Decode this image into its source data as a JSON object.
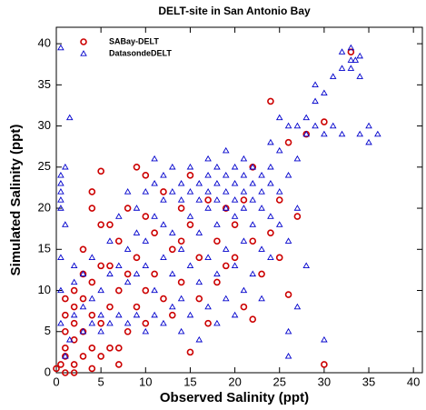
{
  "chart_data": {
    "type": "scatter",
    "title": "DELT-site in San Antonio Bay",
    "xlabel": "Observed Salinity (ppt)",
    "ylabel": "Simulated Salinity (ppt)",
    "xlim": [
      0,
      41
    ],
    "ylim": [
      0,
      42
    ],
    "xticks": [
      0,
      5,
      10,
      15,
      20,
      25,
      30,
      35,
      40
    ],
    "yticks": [
      0,
      5,
      10,
      15,
      20,
      25,
      30,
      35,
      40
    ],
    "legend": "upper left",
    "series": [
      {
        "name": "SABay-DELT",
        "color": "#cc0000",
        "marker": "circle",
        "x": [
          0,
          0.5,
          1,
          1,
          1,
          1,
          1,
          1,
          2,
          2,
          2,
          2,
          2,
          2,
          3,
          3,
          3,
          3,
          3,
          4,
          4,
          4,
          4,
          4,
          4,
          5,
          5,
          5,
          5,
          6,
          6,
          6,
          7,
          7,
          7,
          7,
          8,
          8,
          8,
          9,
          9,
          9,
          10,
          10,
          10,
          10,
          11,
          11,
          12,
          12,
          13,
          13,
          14,
          14,
          15,
          15,
          16,
          16,
          17,
          17,
          18,
          18,
          19,
          19,
          20,
          20,
          21,
          21,
          22,
          22,
          23,
          24,
          24,
          25,
          25,
          26,
          26,
          27,
          28,
          30,
          30,
          33,
          22,
          14,
          6,
          15,
          5
        ],
        "values": [
          0.5,
          1,
          0,
          2,
          3,
          5,
          7,
          9,
          0,
          1,
          4,
          6,
          8,
          10,
          2,
          5,
          9,
          12,
          15,
          0.5,
          3,
          7,
          11,
          20,
          22,
          2,
          6,
          13,
          18,
          3,
          8,
          13,
          1,
          3,
          10,
          16,
          5,
          12,
          20,
          25,
          8,
          14,
          6,
          10,
          19,
          24,
          12,
          17,
          9,
          22,
          15,
          7,
          20,
          11,
          18,
          24,
          9,
          14,
          21,
          6,
          16,
          11,
          20,
          13,
          18,
          14,
          8,
          21,
          6.5,
          16,
          12,
          17,
          33,
          14,
          21,
          9.5,
          28,
          19,
          29,
          1,
          30.5,
          39,
          25,
          16,
          18,
          2.5,
          24.5
        ]
      },
      {
        "name": "DatasondeDELT",
        "color": "#0000cc",
        "marker": "triangle",
        "x": [
          0.5,
          0.5,
          0.5,
          0.5,
          0.5,
          0.5,
          0.5,
          0.5,
          0.5,
          1,
          1,
          1.5,
          1.5,
          1,
          2,
          2,
          2,
          3,
          3,
          3,
          4,
          4,
          4,
          5,
          5,
          5,
          6,
          6,
          6,
          7,
          7,
          7,
          8,
          8,
          8,
          8,
          9,
          9,
          9,
          9,
          10,
          10,
          10,
          10,
          11,
          11,
          11,
          11,
          12,
          12,
          12,
          12,
          12,
          13,
          13,
          13,
          13,
          14,
          14,
          14,
          14,
          14,
          15,
          15,
          15,
          15,
          15,
          16,
          16,
          16,
          16,
          16,
          17,
          17,
          17,
          17,
          17,
          18,
          18,
          18,
          18,
          18,
          18,
          19,
          19,
          19,
          19,
          19,
          20,
          20,
          20,
          20,
          20,
          20,
          21,
          21,
          21,
          21,
          21,
          21,
          22,
          22,
          22,
          22,
          22,
          23,
          23,
          23,
          23,
          23,
          24,
          24,
          24,
          24,
          24,
          25,
          25,
          25,
          25,
          26,
          26,
          26,
          26,
          27,
          27,
          27,
          27,
          28,
          28,
          28,
          29,
          29,
          29,
          30,
          30,
          31,
          31,
          32,
          32,
          32,
          33,
          33,
          33,
          33.5,
          34,
          34,
          34,
          35,
          35,
          36,
          30,
          26,
          19,
          17,
          13,
          11
        ],
        "values": [
          39.5,
          24,
          23,
          22,
          21,
          20,
          14,
          10,
          6,
          25,
          18,
          31,
          4,
          2,
          13,
          11,
          7,
          5,
          8,
          12,
          6,
          9,
          14,
          5,
          10,
          7,
          6,
          12,
          16,
          7,
          13,
          19,
          6,
          11,
          15,
          22,
          7,
          12,
          17,
          20,
          5,
          13,
          16,
          22,
          7,
          10,
          19,
          23,
          6,
          14,
          18,
          21,
          24,
          8,
          12,
          17,
          22,
          5,
          9,
          15,
          21,
          23,
          7,
          13,
          19,
          22,
          25,
          4,
          11,
          17,
          21,
          23,
          8,
          14,
          20,
          22,
          24,
          6,
          12,
          18,
          21,
          23,
          25,
          9,
          15,
          20,
          22,
          24,
          7,
          13,
          19,
          21,
          23,
          25,
          10,
          16,
          20,
          22,
          24,
          26,
          12,
          18,
          21,
          23,
          25,
          9,
          15,
          20,
          22,
          24,
          14,
          19,
          23,
          25,
          28,
          18,
          22,
          27,
          31,
          5,
          16,
          24,
          30,
          8,
          20,
          26,
          30,
          13,
          29,
          31,
          30,
          33,
          35,
          29,
          34,
          30,
          36,
          29,
          37,
          39,
          38,
          39.5,
          37,
          38,
          36,
          38.5,
          29,
          30,
          28,
          29,
          4,
          2,
          27,
          26,
          25,
          26
        ]
      }
    ]
  }
}
